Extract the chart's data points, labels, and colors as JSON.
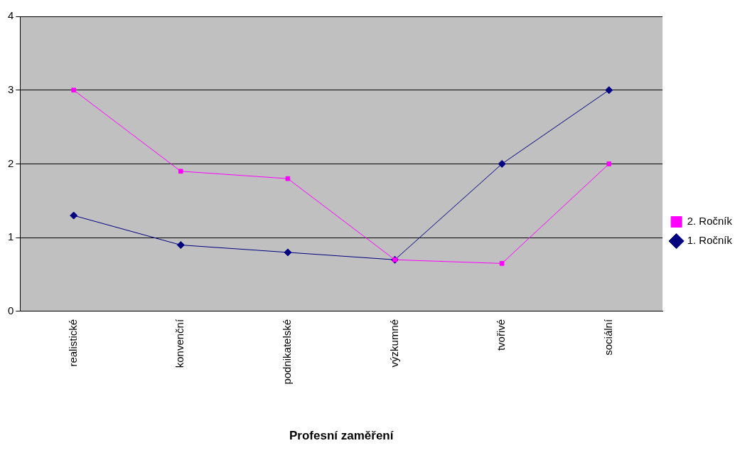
{
  "chart_data": {
    "type": "line",
    "xlabel": "Profesní zaměření",
    "categories": [
      "realistické",
      "konvenční",
      "podnikatelské",
      "výzkumné",
      "tvořivé",
      "sociální"
    ],
    "series": [
      {
        "name": "1. Ročník",
        "color": "#000080",
        "marker": "diamond",
        "values": [
          1.3,
          0.9,
          0.8,
          0.7,
          2,
          3
        ]
      },
      {
        "name": "2. Ročník",
        "color": "#ff00ff",
        "marker": "square",
        "values": [
          3,
          1.9,
          1.8,
          0.7,
          0.65,
          2
        ]
      }
    ],
    "ylim": [
      0,
      4
    ],
    "yticks": [
      0,
      1,
      2,
      3,
      4
    ],
    "grid": "y",
    "legend": "right"
  }
}
